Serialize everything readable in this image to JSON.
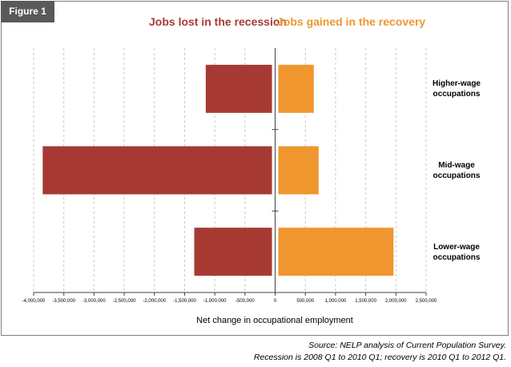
{
  "figure_label": "Figure 1",
  "legend": {
    "lost": "Jobs lost in the recession",
    "gained": "Jobs gained in the recovery"
  },
  "colors": {
    "lost": "#a63a33",
    "gained": "#f0962e",
    "grid": "#c8c8c8",
    "axis": "#404040"
  },
  "categories": [
    [
      "Higher-wage",
      "occupations"
    ],
    [
      "Mid-wage",
      "occupations"
    ],
    [
      "Lower-wage",
      "occupations"
    ]
  ],
  "chart_data": {
    "type": "bar",
    "orientation": "horizontal",
    "categories": [
      "Higher-wage occupations",
      "Mid-wage occupations",
      "Lower-wage occupations"
    ],
    "series": [
      {
        "name": "Jobs lost in the recession",
        "values": [
          -1150000,
          -3850000,
          -1340000
        ]
      },
      {
        "name": "Jobs gained in the recovery",
        "values": [
          640000,
          720000,
          1960000
        ]
      }
    ],
    "xlabel": "Net change in occupational employment",
    "xlim": [
      -4000000,
      2500000
    ],
    "xticks": [
      -4000000,
      -3500000,
      -3000000,
      -2500000,
      -2000000,
      -1500000,
      -1000000,
      -500000,
      0,
      500000,
      1000000,
      1500000,
      2000000,
      2500000
    ],
    "xtick_labels": [
      "-4,000,000",
      "-3,500,000",
      "-3,000,000",
      "-2,500,000",
      "-2,000,000",
      "-1,500,000",
      "-1,000,000",
      "-500,000",
      "0",
      "500,000",
      "1,000,000",
      "1,500,000",
      "2,000,000",
      "2,500,000"
    ],
    "grid": true,
    "legend_position": "top"
  },
  "source": {
    "line1": "Source: NELP analysis of Current Population Survey.",
    "line2": "Recession is 2008 Q1 to 2010 Q1; recovery is 2010 Q1 to 2012 Q1."
  }
}
